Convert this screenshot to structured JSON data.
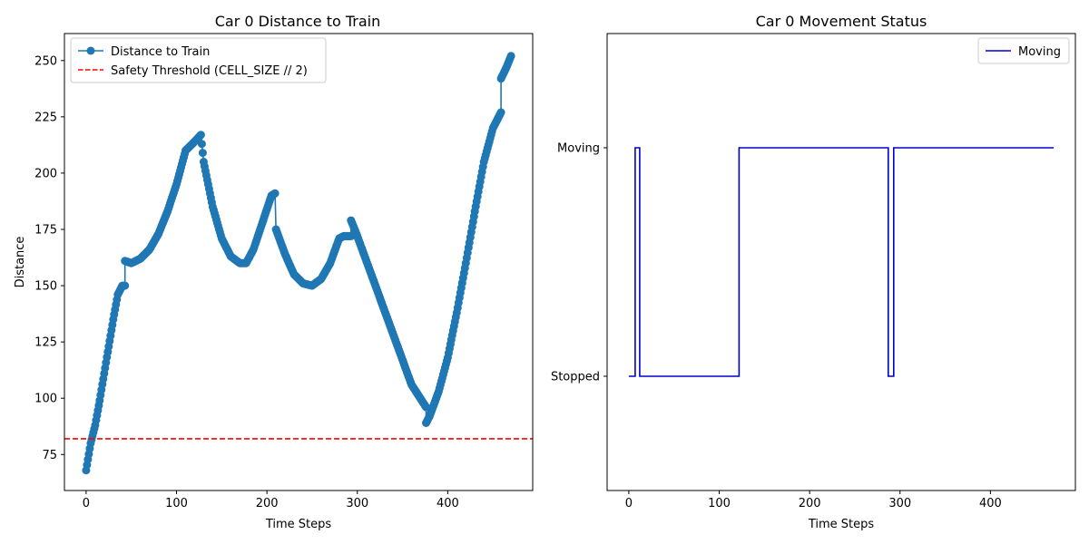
{
  "chart_data": [
    {
      "type": "line",
      "title": "Car 0 Distance to Train",
      "xlabel": "Time Steps",
      "ylabel": "Distance",
      "xlim": [
        -24,
        494
      ],
      "ylim": [
        59,
        262
      ],
      "xticks": [
        0,
        100,
        200,
        300,
        400
      ],
      "yticks": [
        75,
        100,
        125,
        150,
        175,
        200,
        225,
        250
      ],
      "grid": false,
      "legend_position": "upper-left",
      "series": [
        {
          "name": "Distance to Train",
          "color": "#1f77b4",
          "marker": "circle",
          "x": [
            0,
            5,
            10,
            15,
            20,
            25,
            30,
            35,
            40,
            43,
            43,
            50,
            60,
            70,
            80,
            90,
            100,
            110,
            120,
            127,
            130,
            140,
            150,
            160,
            170,
            177,
            185,
            195,
            205,
            209,
            210,
            220,
            230,
            240,
            250,
            260,
            270,
            280,
            285,
            293,
            293,
            300,
            320,
            340,
            360,
            376,
            376,
            380,
            390,
            400,
            410,
            420,
            430,
            440,
            450,
            459,
            459,
            465,
            470
          ],
          "y": [
            68,
            80,
            88,
            99,
            111,
            123,
            135,
            146,
            150,
            150,
            161,
            160,
            162,
            166,
            173,
            183,
            195,
            210,
            214,
            217,
            205,
            185,
            171,
            163,
            160,
            160,
            166,
            178,
            190,
            191,
            175,
            164,
            155,
            151,
            150,
            153,
            160,
            171,
            172,
            172,
            179,
            172,
            150,
            128,
            106,
            96,
            89,
            92,
            103,
            118,
            138,
            160,
            183,
            205,
            220,
            227,
            242,
            247,
            252
          ]
        },
        {
          "name": "Safety Threshold (CELL_SIZE // 2)",
          "color": "#ff0000",
          "style": "dashed",
          "y_constant": 82
        }
      ]
    },
    {
      "type": "line",
      "title": "Car 0 Movement Status",
      "xlabel": "Time Steps",
      "ylabel": "",
      "xlim": [
        -24,
        494
      ],
      "ylim": [
        -0.5,
        1.5
      ],
      "xticks": [
        0,
        100,
        200,
        300,
        400
      ],
      "yticks": [
        0,
        1
      ],
      "ytick_labels": [
        "Stopped",
        "Moving"
      ],
      "grid": false,
      "legend_position": "upper-right",
      "series": [
        {
          "name": "Moving",
          "color": "#0000cd",
          "step": true,
          "x": [
            0,
            7,
            7,
            12,
            12,
            122,
            122,
            287,
            287,
            293,
            293,
            470
          ],
          "y": [
            0,
            0,
            1,
            1,
            0,
            0,
            1,
            1,
            0,
            0,
            1,
            1
          ]
        }
      ]
    }
  ]
}
